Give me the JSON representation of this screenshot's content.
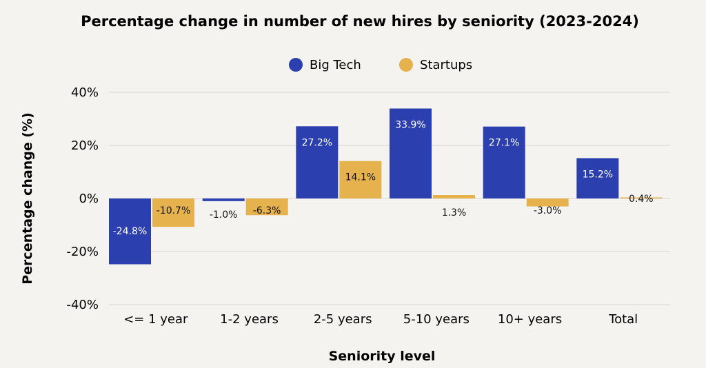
{
  "chart_data": {
    "type": "bar",
    "title": "Percentage change in number of new hires by seniority (2023-2024)",
    "xlabel": "Seniority level",
    "ylabel": "Percentage change (%)",
    "categories": [
      "<= 1 year",
      "1-2 years",
      "2-5 years",
      "5-10 years",
      "10+ years",
      "Total"
    ],
    "series": [
      {
        "name": "Big Tech",
        "color": "#2b3fae",
        "values": [
          -24.8,
          -1.0,
          27.2,
          33.9,
          27.1,
          15.2
        ],
        "labels": [
          "-24.8%",
          "-1.0%",
          "27.2%",
          "33.9%",
          "27.1%",
          "15.2%"
        ]
      },
      {
        "name": "Startups",
        "color": "#e6b24e",
        "values": [
          -10.7,
          -6.3,
          14.1,
          1.3,
          -3.0,
          0.4
        ],
        "labels": [
          "-10.7%",
          "-6.3%",
          "14.1%",
          "1.3%",
          "-3.0%",
          "0.4%"
        ]
      }
    ],
    "ylim": [
      -40,
      40
    ],
    "yticks": [
      40,
      20,
      0,
      -20,
      -40
    ],
    "ytick_labels": [
      "40%",
      "20%",
      "0%",
      "-20%",
      "-40%"
    ],
    "grid": true,
    "legend_position": "top-center"
  }
}
